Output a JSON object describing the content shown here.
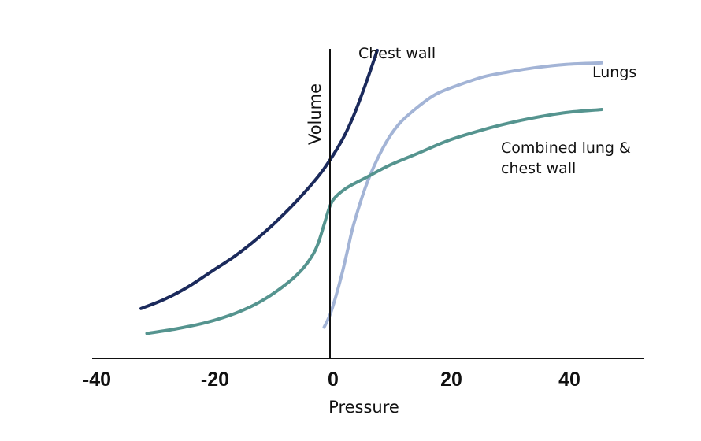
{
  "chart_data": {
    "type": "line",
    "title": "",
    "xlabel": "Pressure",
    "ylabel": "Volume",
    "xlim": [
      -40,
      50
    ],
    "ylim": [
      0,
      100
    ],
    "x_ticks": [
      "-40",
      "-20",
      "0",
      "20",
      "40"
    ],
    "grid": false,
    "legend": "none",
    "series": [
      {
        "name": "Chest wall",
        "label_lines": [
          "Chest wall"
        ],
        "color": "#1b2a5c",
        "x": [
          -32,
          -28,
          -24,
          -20,
          -16,
          -12,
          -8,
          -4,
          -1,
          2,
          4,
          6,
          8
        ],
        "y": [
          16,
          19,
          23,
          28,
          33,
          39,
          46,
          54,
          61,
          70,
          78,
          88,
          99
        ]
      },
      {
        "name": "Lungs",
        "label_lines": [
          "Lungs"
        ],
        "color": "#a3b4d6",
        "x": [
          -1,
          0,
          1,
          2,
          3,
          4,
          6,
          8,
          10,
          12,
          15,
          18,
          22,
          26,
          30,
          35,
          40,
          46
        ],
        "y": [
          10,
          14,
          20,
          27,
          35,
          43,
          55,
          64,
          71,
          76,
          81,
          85,
          88,
          90.5,
          92,
          93.5,
          94.5,
          95
        ]
      },
      {
        "name": "Combined lung & chest wall",
        "label_lines": [
          "Combined lung &",
          "chest wall"
        ],
        "color": "#55948f",
        "x": [
          -31,
          -26,
          -21,
          -16,
          -12,
          -8,
          -5,
          -3,
          -2,
          -1,
          0,
          1,
          3,
          6,
          10,
          15,
          20,
          25,
          30,
          35,
          40,
          46
        ],
        "y": [
          8,
          9.5,
          11.5,
          14.5,
          18,
          23,
          28,
          33,
          37,
          43,
          49,
          52,
          55,
          58,
          62,
          66,
          70,
          73,
          75.5,
          77.5,
          79,
          80
        ]
      }
    ]
  }
}
